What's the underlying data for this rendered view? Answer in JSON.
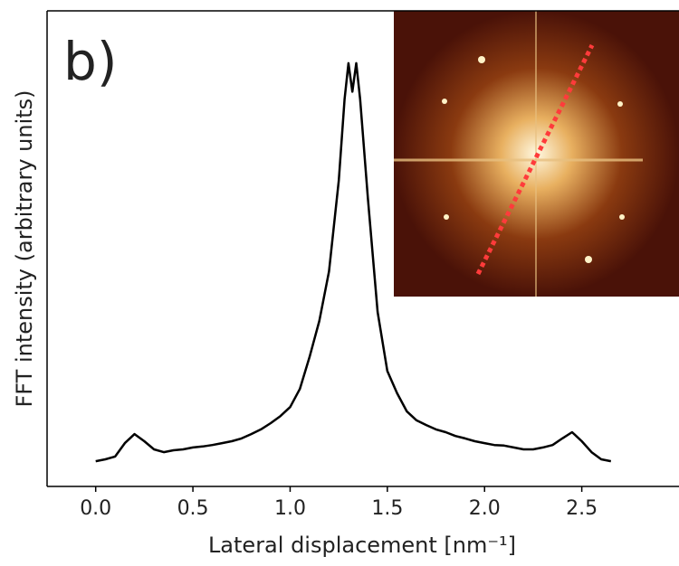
{
  "chart_data": {
    "type": "line",
    "annotation": "b)",
    "x_label": "Lateral displacement [nm⁻¹]",
    "y_label": "FFT intensity (arbitrary units)",
    "x": [
      0,
      0.05,
      0.1,
      0.15,
      0.2,
      0.25,
      0.3,
      0.35,
      0.4,
      0.45,
      0.5,
      0.55,
      0.6,
      0.65,
      0.7,
      0.75,
      0.8,
      0.85,
      0.9,
      0.95,
      1.0,
      1.05,
      1.1,
      1.15,
      1.2,
      1.25,
      1.28,
      1.3,
      1.32,
      1.34,
      1.36,
      1.4,
      1.45,
      1.5,
      1.55,
      1.6,
      1.65,
      1.7,
      1.75,
      1.8,
      1.85,
      1.9,
      1.95,
      2.0,
      2.05,
      2.1,
      2.15,
      2.2,
      2.25,
      2.3,
      2.35,
      2.4,
      2.45,
      2.5,
      2.55,
      2.6,
      2.65
    ],
    "series": [
      {
        "color": "#000000",
        "values": [
          5.3,
          5.7,
          6.3,
          9.1,
          11,
          9.5,
          7.8,
          7.2,
          7.6,
          7.8,
          8.2,
          8.4,
          8.7,
          9.1,
          9.5,
          10.1,
          11,
          12,
          13.3,
          14.8,
          16.7,
          20.5,
          27.2,
          34.8,
          45.2,
          64.3,
          81.4,
          89,
          83,
          89,
          81.4,
          60.5,
          36.7,
          24.3,
          19.6,
          15.8,
          13.9,
          12.9,
          12,
          11.4,
          10.6,
          10.1,
          9.5,
          9.1,
          8.7,
          8.6,
          8.2,
          7.8,
          7.8,
          8.2,
          8.7,
          10.1,
          11.4,
          9.5,
          7.2,
          5.7,
          5.3
        ]
      }
    ],
    "xlim": [
      -0.25,
      3.0
    ],
    "xticks": [
      {
        "value": 0,
        "label": "0.0"
      },
      0.5,
      {
        "value": 1,
        "label": "1.0"
      },
      1.5,
      {
        "value": 2,
        "label": "2.0"
      },
      2.5
    ],
    "ylim": [
      0,
      100
    ]
  }
}
